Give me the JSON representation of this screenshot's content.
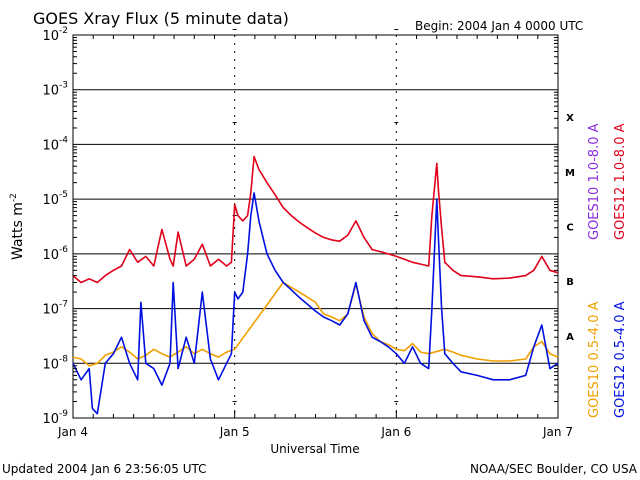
{
  "chart_data": {
    "type": "line",
    "title": "GOES Xray Flux (5 minute data)",
    "begin_label": "Begin:  2004 Jan 4 0000 UTC",
    "xlabel": "Universal Time",
    "ylabel": "Watts m",
    "ylabel_sup": "-2",
    "x_ticks": [
      "Jan 4",
      "Jan 5",
      "Jan 6",
      "Jan 7"
    ],
    "x_range_days": [
      0,
      3
    ],
    "y_scale": "log",
    "ylim": [
      1e-09,
      0.01
    ],
    "y_tick_bases": [
      "10",
      "10",
      "10",
      "10",
      "10",
      "10",
      "10",
      "10"
    ],
    "y_tick_exps": [
      "-9",
      "-8",
      "-7",
      "-6",
      "-5",
      "-4",
      "-3",
      "-2"
    ],
    "flare_classes": [
      "A",
      "B",
      "C",
      "M",
      "X"
    ],
    "updated_label": "Updated 2004 Jan  6 23:56:05 UTC",
    "credit_label": "NOAA/SEC Boulder, CO USA",
    "legend_right": [
      {
        "text": "GOES10 1.0-8.0 A",
        "color": "#8a2be2"
      },
      {
        "text": "GOES12 1.0-8.0 A",
        "color": "#e0001a"
      }
    ],
    "legend_right2": [
      {
        "text": "GOES10 0.5-4.0 A",
        "color": "#f0a000"
      },
      {
        "text": "GOES12 0.5-4.0 A",
        "color": "#0010e0"
      }
    ],
    "series": [
      {
        "name": "GOES12 1.0-8.0 A",
        "color": "#e0001a",
        "x": [
          0.0,
          0.05,
          0.1,
          0.15,
          0.2,
          0.25,
          0.3,
          0.35,
          0.4,
          0.45,
          0.5,
          0.55,
          0.6,
          0.62,
          0.65,
          0.7,
          0.75,
          0.8,
          0.85,
          0.9,
          0.95,
          0.98,
          1.0,
          1.02,
          1.05,
          1.08,
          1.1,
          1.12,
          1.15,
          1.2,
          1.25,
          1.3,
          1.35,
          1.4,
          1.45,
          1.5,
          1.55,
          1.6,
          1.65,
          1.7,
          1.75,
          1.8,
          1.85,
          1.9,
          1.95,
          2.0,
          2.05,
          2.1,
          2.15,
          2.2,
          2.22,
          2.25,
          2.26,
          2.28,
          2.3,
          2.35,
          2.4,
          2.5,
          2.6,
          2.7,
          2.8,
          2.85,
          2.9,
          2.95,
          3.0
        ],
        "y": [
          4e-07,
          3e-07,
          3.5e-07,
          3e-07,
          4e-07,
          5e-07,
          6e-07,
          1.2e-06,
          7e-07,
          9e-07,
          6e-07,
          2.8e-06,
          8e-07,
          6e-07,
          2.5e-06,
          6e-07,
          8e-07,
          1.5e-06,
          6e-07,
          8e-07,
          6e-07,
          7e-07,
          8e-06,
          5e-06,
          4e-06,
          5e-06,
          1.3e-05,
          6e-05,
          3.5e-05,
          2e-05,
          1.2e-05,
          7e-06,
          5e-06,
          3.8e-06,
          3e-06,
          2.4e-06,
          2e-06,
          1.8e-06,
          1.7e-06,
          2.2e-06,
          4e-06,
          2e-06,
          1.2e-06,
          1.1e-06,
          1e-06,
          9e-07,
          8e-07,
          7e-07,
          6.5e-07,
          6e-07,
          5e-06,
          4.5e-05,
          1.5e-05,
          3e-06,
          7e-07,
          5e-07,
          4e-07,
          3.8e-07,
          3.5e-07,
          3.6e-07,
          4e-07,
          5e-07,
          9e-07,
          5e-07,
          4.5e-07
        ]
      },
      {
        "name": "GOES12 0.5-4.0 A",
        "color": "#0010e0",
        "x": [
          0.0,
          0.05,
          0.1,
          0.12,
          0.15,
          0.2,
          0.25,
          0.3,
          0.35,
          0.4,
          0.42,
          0.45,
          0.5,
          0.55,
          0.6,
          0.62,
          0.65,
          0.7,
          0.75,
          0.8,
          0.85,
          0.9,
          0.95,
          0.98,
          1.0,
          1.02,
          1.05,
          1.08,
          1.1,
          1.12,
          1.15,
          1.2,
          1.25,
          1.3,
          1.35,
          1.4,
          1.45,
          1.5,
          1.55,
          1.6,
          1.65,
          1.7,
          1.75,
          1.8,
          1.85,
          1.9,
          1.95,
          2.0,
          2.05,
          2.1,
          2.15,
          2.2,
          2.22,
          2.25,
          2.26,
          2.28,
          2.3,
          2.35,
          2.4,
          2.5,
          2.6,
          2.7,
          2.8,
          2.85,
          2.9,
          2.95,
          3.0
        ],
        "y": [
          1e-08,
          5e-09,
          8e-09,
          1.5e-09,
          1.2e-09,
          1e-08,
          1.5e-08,
          3e-08,
          1e-08,
          5e-09,
          1.3e-07,
          1e-08,
          8e-09,
          4e-09,
          1e-08,
          3e-07,
          8e-09,
          3e-08,
          1e-08,
          2e-07,
          1.2e-08,
          5e-09,
          1e-08,
          1.5e-08,
          2e-07,
          1.5e-07,
          2e-07,
          1e-06,
          5e-06,
          1.3e-05,
          4e-06,
          1e-06,
          5e-07,
          3e-07,
          2.2e-07,
          1.6e-07,
          1.2e-07,
          9e-08,
          7e-08,
          6e-08,
          5e-08,
          8e-08,
          3e-07,
          6e-08,
          3e-08,
          2.5e-08,
          2e-08,
          1.5e-08,
          1e-08,
          2e-08,
          1e-08,
          8e-09,
          1e-07,
          1e-05,
          2e-06,
          1e-07,
          1.5e-08,
          1e-08,
          7e-09,
          6e-09,
          5e-09,
          5e-09,
          6e-09,
          2e-08,
          5e-08,
          8e-09,
          1e-08
        ]
      },
      {
        "name": "GOES10 0.5-4.0 A",
        "color": "#f0a000",
        "x": [
          0.0,
          0.05,
          0.1,
          0.15,
          0.2,
          0.25,
          0.3,
          0.35,
          0.4,
          0.45,
          0.5,
          0.55,
          0.6,
          0.65,
          0.7,
          0.75,
          0.8,
          0.85,
          0.9,
          0.95,
          1.0,
          1.3,
          1.4,
          1.5,
          1.55,
          1.6,
          1.65,
          1.7,
          1.75,
          1.8,
          1.85,
          1.9,
          1.95,
          2.0,
          2.05,
          2.1,
          2.15,
          2.2,
          2.3,
          2.35,
          2.4,
          2.5,
          2.6,
          2.7,
          2.8,
          2.85,
          2.9,
          2.95,
          3.0
        ],
        "y": [
          1.3e-08,
          1.2e-08,
          9e-09,
          1e-08,
          1.4e-08,
          1.6e-08,
          2e-08,
          1.6e-08,
          1.2e-08,
          1.4e-08,
          1.8e-08,
          1.5e-08,
          1.3e-08,
          1.6e-08,
          2e-08,
          1.5e-08,
          1.8e-08,
          1.5e-08,
          1.3e-08,
          1.6e-08,
          1.8e-08,
          3e-07,
          2e-07,
          1.3e-07,
          8e-08,
          7e-08,
          6e-08,
          8e-08,
          2.8e-07,
          7e-08,
          3.5e-08,
          2.5e-08,
          2.2e-08,
          1.8e-08,
          1.7e-08,
          2.3e-08,
          1.6e-08,
          1.5e-08,
          1.8e-08,
          1.6e-08,
          1.4e-08,
          1.2e-08,
          1.1e-08,
          1.1e-08,
          1.2e-08,
          2e-08,
          2.5e-08,
          1.5e-08,
          1.3e-08
        ]
      }
    ]
  }
}
